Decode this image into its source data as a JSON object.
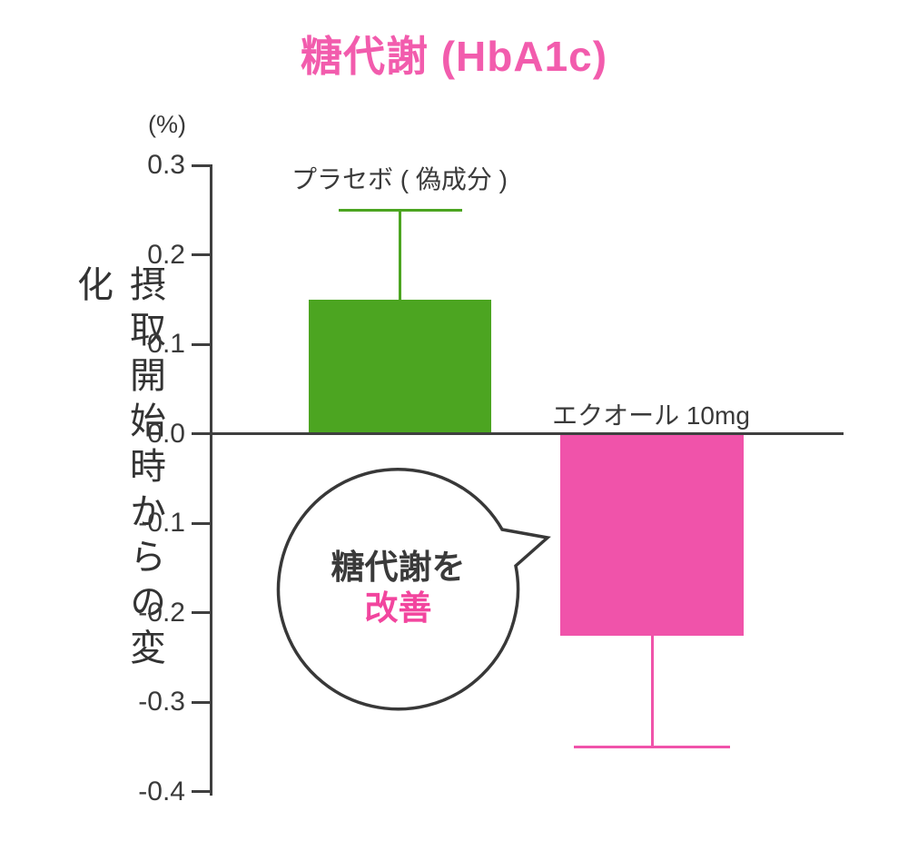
{
  "colors": {
    "title_pink": "#f25cad",
    "bar_green": "#4ca521",
    "bar_pink": "#f053aa",
    "accent_pink": "#f2459e",
    "axis_gray": "#3f3f3f",
    "text_dark": "#3a3a3a"
  },
  "chart_data": {
    "type": "bar",
    "title": "糖代謝 (HbA1c)",
    "unit_label": "(%)",
    "ylabel": "摂取開始時からの変化",
    "ylim": [
      -0.4,
      0.3
    ],
    "yticks": [
      "0.3",
      "0.2",
      "0.1",
      "0.0",
      "-0.1",
      "-0.2",
      "-0.3",
      "-0.4"
    ],
    "grid": false,
    "legend": "labels above bars",
    "bars": [
      {
        "label": "プラセボ ( 偽成分 )",
        "value": 0.15,
        "whisker_end": 0.25,
        "color": "#4ca521"
      },
      {
        "label": "エクオール 10mg",
        "value": -0.225,
        "whisker_end": -0.35,
        "color": "#f053aa"
      }
    ],
    "annotation": {
      "line1": "糖代謝を",
      "line2": "改善"
    }
  }
}
